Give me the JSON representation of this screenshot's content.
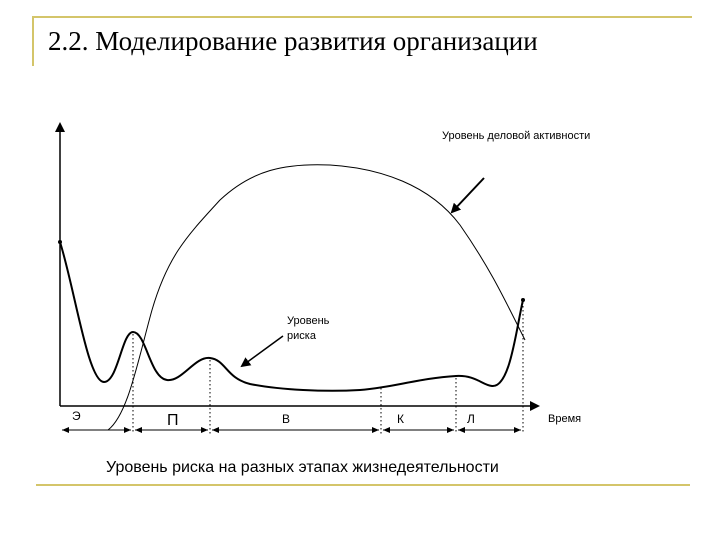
{
  "slide": {
    "title": "2.2. Моделирование развития организации"
  },
  "diagram": {
    "business_activity_label": "Уровень деловой активности",
    "risk_label_line1": "Уровень",
    "risk_label_line2": "риска",
    "time_axis_label": "Время",
    "stages": [
      "Э",
      "П",
      "В",
      "К",
      "Л"
    ],
    "caption": "Уровень риска на разных этапах жизнедеятельности"
  },
  "colors": {
    "frame": "#d4c56a",
    "lines": "#000000"
  }
}
